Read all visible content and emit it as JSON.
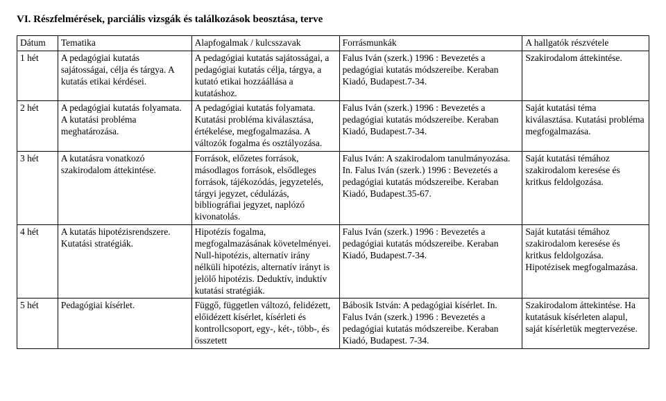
{
  "title": "VI. Részfelmérések, parciális vizsgák és találkozások beosztása, terve",
  "headers": [
    "Dátum",
    "Tematika",
    "Alapfogalmak / kulcsszavak",
    "Forrásmunkák",
    "A hallgatók részvétele"
  ],
  "rows": [
    {
      "c1": "1 hét",
      "c2": "A pedagógiai kutatás sajátosságai, célja és tárgya. A kutatás etikai kérdései.",
      "c3": "A pedagógiai kutatás sajátosságai, a pedagógiai kutatás célja, tárgya, a kutató etikai hozzáállása a kutatáshoz.",
      "c4": "Falus Iván (szerk.) 1996 : Bevezetés a pedagógiai kutatás módszereibe. Keraban Kiadó, Budapest.7-34.",
      "c5": "Szakirodalom áttekintése."
    },
    {
      "c1": "2 hét",
      "c2": "A pedagógiai kutatás folyamata. A kutatási probléma meghatározása.",
      "c3": "A pedagógiai kutatás folyamata. Kutatási probléma kiválasztása, értékelése, megfogalmazása. A változók fogalma és osztályozása.",
      "c4": "Falus Iván (szerk.) 1996 : Bevezetés a pedagógiai kutatás módszereibe. Keraban Kiadó, Budapest.7-34.",
      "c5": "Saját kutatási téma kiválasztása. Kutatási probléma megfogalmazása."
    },
    {
      "c1": "3 hét",
      "c2": "A kutatásra vonatkozó szakirodalom áttekintése.",
      "c3": "Források, előzetes források, másodlagos források, elsődleges források, tájékozódás, jegyzetelés, tárgyi jegyzet, cédulázás, bibliográfiai jegyzet, naplózó kivonatolás.",
      "c4": "Falus Iván: A szakirodalom tanulmányozása. In. Falus Iván (szerk.) 1996 : Bevezetés a pedagógiai kutatás módszereibe. Keraban Kiadó, Budapest.35-67.",
      "c5": "Saját kutatási témához szakirodalom keresése és kritkus feldolgozása."
    },
    {
      "c1": "4 hét",
      "c2": "A kutatás hipotézisrendszere. Kutatási stratégiák.",
      "c3": "Hipotézis fogalma, megfogalmazásának követelményei. Null-hipotézis, alternatív irány nélküli hipotézis, alternatív irányt is jelölő hipotézis. Deduktív, induktív kutatási stratégiák.",
      "c4": "Falus Iván (szerk.) 1996 : Bevezetés a pedagógiai kutatás módszereibe. Keraban Kiadó, Budapest.7-34.",
      "c5": "Saját kutatási témához szakirodalom keresése és kritkus feldolgozása. Hipotézisek megfogalmazása."
    },
    {
      "c1": "5 hét",
      "c2": "Pedagógiai kísérlet.",
      "c3": "Függő, független változó, felidézett, előidézett kísérlet, kísérleti és kontrollcsoport, egy-, két-, több-, és összetett",
      "c4": "Bábosik István: A pedagógiai kísérlet. In. Falus Iván (szerk.) 1996 : Bevezetés a pedagógiai kutatás módszereibe. Keraban Kiadó, Budapest. 7-34.",
      "c5": "Szakirodalom áttekintése. Ha kutatásuk kísérleten alapul, saját kísérletük megtervezése."
    }
  ]
}
